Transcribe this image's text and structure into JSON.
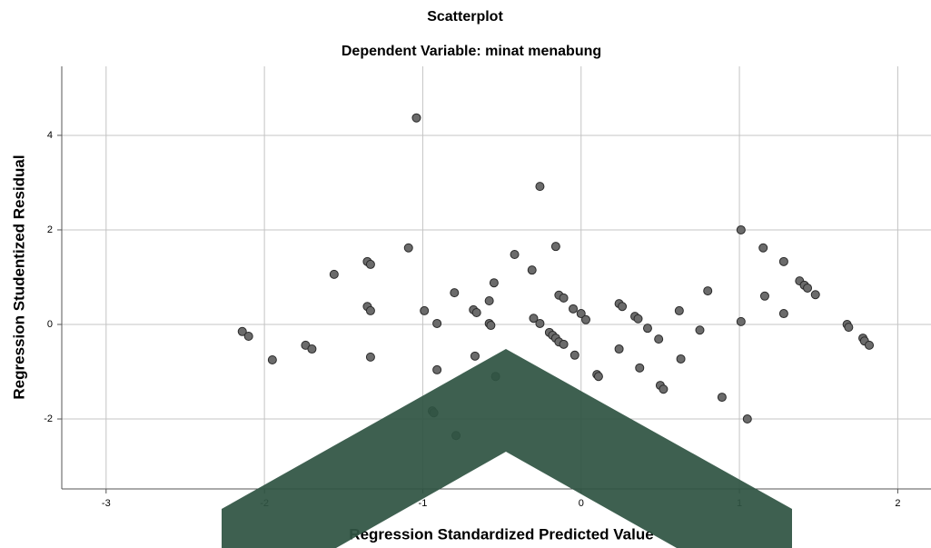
{
  "chart_data": {
    "type": "scatter",
    "title": "Scatterplot",
    "subtitle": "Dependent Variable: minat menabung",
    "x_label": "Regression Standardized Predicted Value",
    "y_label": "Regression Studentized Residual",
    "xlim": [
      -3.28,
      2.21
    ],
    "ylim": [
      -3.48,
      5.46
    ],
    "xticks": [
      -3,
      -2,
      -1,
      0,
      1,
      2
    ],
    "yticks": [
      -2,
      0,
      2,
      4
    ],
    "grid": true,
    "color": "#6b6b6b",
    "x": [
      -2.14,
      -2.1,
      -1.95,
      -1.74,
      -1.7,
      -1.56,
      -1.35,
      -1.33,
      -1.35,
      -1.33,
      -1.33,
      -1.09,
      -1.04,
      -0.99,
      -0.91,
      -0.91,
      -0.94,
      -0.93,
      -0.8,
      -0.79,
      -0.68,
      -0.66,
      -0.67,
      -0.58,
      -0.57,
      -0.55,
      -0.54,
      -0.58,
      -0.42,
      -0.31,
      -0.3,
      -0.26,
      -0.26,
      -0.2,
      -0.18,
      -0.16,
      -0.14,
      -0.11,
      -0.16,
      -0.14,
      -0.11,
      -0.05,
      0,
      0.03,
      -0.04,
      0.1,
      0.11,
      0.24,
      0.26,
      0.24,
      0.34,
      0.36,
      0.42,
      0.37,
      0.49,
      0.5,
      0.52,
      0.62,
      0.63,
      0.75,
      0.8,
      0.89,
      1.01,
      1.01,
      1.05,
      1.15,
      1.16,
      1.28,
      1.28,
      1.38,
      1.41,
      1.43,
      1.48,
      1.68,
      1.69,
      1.78,
      1.79,
      1.82
    ],
    "values": [
      -0.15,
      -0.25,
      -0.75,
      -0.44,
      -0.52,
      1.06,
      1.33,
      1.27,
      0.38,
      0.29,
      -0.69,
      1.62,
      4.37,
      0.29,
      0.02,
      -0.96,
      -1.83,
      -1.87,
      0.67,
      -2.35,
      0.31,
      0.25,
      -0.67,
      0.02,
      -0.02,
      0.88,
      -1.1,
      0.5,
      1.48,
      1.15,
      0.13,
      2.92,
      0.02,
      -0.17,
      -0.23,
      -0.29,
      -0.37,
      -0.42,
      1.65,
      0.62,
      0.56,
      0.33,
      0.23,
      0.1,
      -0.65,
      -1.06,
      -1.1,
      0.44,
      0.38,
      -0.52,
      0.17,
      0.12,
      -0.08,
      -0.92,
      -0.31,
      -1.29,
      -1.37,
      0.29,
      -0.73,
      -0.12,
      0.71,
      -1.54,
      2.0,
      0.06,
      -2.0,
      1.62,
      0.6,
      1.33,
      0.23,
      0.92,
      0.83,
      0.77,
      0.63,
      0.0,
      -0.06,
      -0.29,
      -0.35,
      -0.44
    ]
  }
}
